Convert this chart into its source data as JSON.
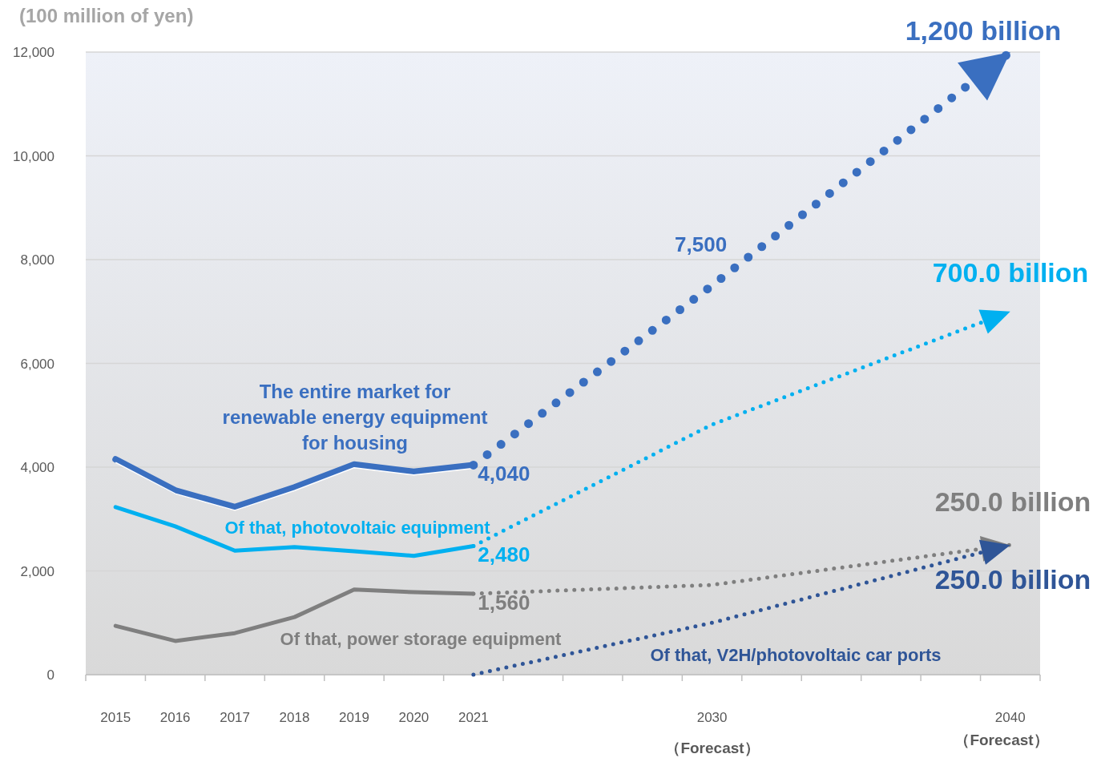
{
  "chart_data": {
    "type": "line",
    "ylabel": "(100 million of yen)",
    "categories": [
      "2015",
      "2016",
      "2017",
      "2018",
      "2019",
      "2020",
      "2021",
      null,
      null,
      null,
      "2030",
      null,
      null,
      null,
      null,
      "2040"
    ],
    "ylim": [
      0,
      12000
    ],
    "yticks": [
      {
        "value": 0,
        "label": "0"
      },
      {
        "value": 2000,
        "label": "2,000"
      },
      {
        "value": 4000,
        "label": "4,000"
      },
      {
        "value": 6000,
        "label": "6,000"
      },
      {
        "value": 8000,
        "label": "8,000"
      },
      {
        "value": 10000,
        "label": "10,000"
      },
      {
        "value": 12000,
        "label": "12,000"
      }
    ],
    "grid": "y",
    "tick_labels": "xy",
    "marker": "none",
    "series": [
      {
        "name": "The entire market for renewable energy equipment for housing",
        "color": "#3a6fc0",
        "line_style": "solid",
        "values": [
          4150,
          3550,
          3230,
          3610,
          4050,
          3910,
          4040,
          null,
          null,
          null,
          null,
          null,
          null,
          null,
          null,
          null
        ],
        "value_labels": [
          null,
          null,
          null,
          null,
          null,
          null,
          "4,040",
          null,
          null,
          null,
          null,
          null,
          null,
          null,
          null,
          null
        ]
      },
      {
        "name": "Of that, photovoltaic equipment",
        "color": "#00b0f0",
        "line_style": "solid",
        "values": [
          3230,
          2860,
          2390,
          2460,
          2380,
          2290,
          2480,
          null,
          null,
          null,
          null,
          null,
          null,
          null,
          null,
          null
        ],
        "value_labels": [
          null,
          null,
          null,
          null,
          null,
          null,
          "2,480",
          null,
          null,
          null,
          null,
          null,
          null,
          null,
          null,
          null
        ]
      },
      {
        "name": "Of that, power storage equipment",
        "color": "#7f7f7f",
        "line_style": "solid",
        "values": [
          940,
          650,
          800,
          1110,
          1640,
          1590,
          1560,
          null,
          null,
          null,
          null,
          null,
          null,
          null,
          null,
          null
        ],
        "value_labels": [
          null,
          null,
          null,
          null,
          null,
          null,
          "1,560",
          null,
          null,
          null,
          null,
          null,
          null,
          null,
          null,
          null
        ]
      },
      {
        "color": "#3a6fc0",
        "line_style": "dotted",
        "values": [
          null,
          null,
          null,
          null,
          null,
          null,
          4040,
          null,
          null,
          null,
          7500,
          null,
          null,
          null,
          null,
          12000
        ],
        "value_labels": [
          null,
          null,
          null,
          null,
          null,
          null,
          null,
          null,
          null,
          null,
          "7,500",
          null,
          null,
          null,
          null,
          null
        ]
      },
      {
        "color": "#00b0f0",
        "line_style": "dotted",
        "values": [
          null,
          null,
          null,
          null,
          null,
          null,
          2480,
          null,
          null,
          null,
          4820,
          null,
          null,
          null,
          null,
          7000
        ]
      },
      {
        "color": "#7f7f7f",
        "line_style": "dotted",
        "values": [
          null,
          null,
          null,
          null,
          null,
          null,
          1560,
          null,
          null,
          null,
          1730,
          null,
          null,
          null,
          null,
          2500
        ]
      },
      {
        "name": "Of that, V2H/photovoltaic car ports",
        "color": "#2f5597",
        "line_style": "dotted",
        "values": [
          null,
          null,
          null,
          null,
          null,
          null,
          0,
          null,
          null,
          null,
          1000,
          null,
          null,
          null,
          null,
          2500
        ]
      }
    ],
    "annotations": [
      "（Forecast）",
      "（Forecast）",
      "1,200 billion",
      "700.0 billion",
      "250.0 billion",
      "250.0 billion"
    ]
  }
}
